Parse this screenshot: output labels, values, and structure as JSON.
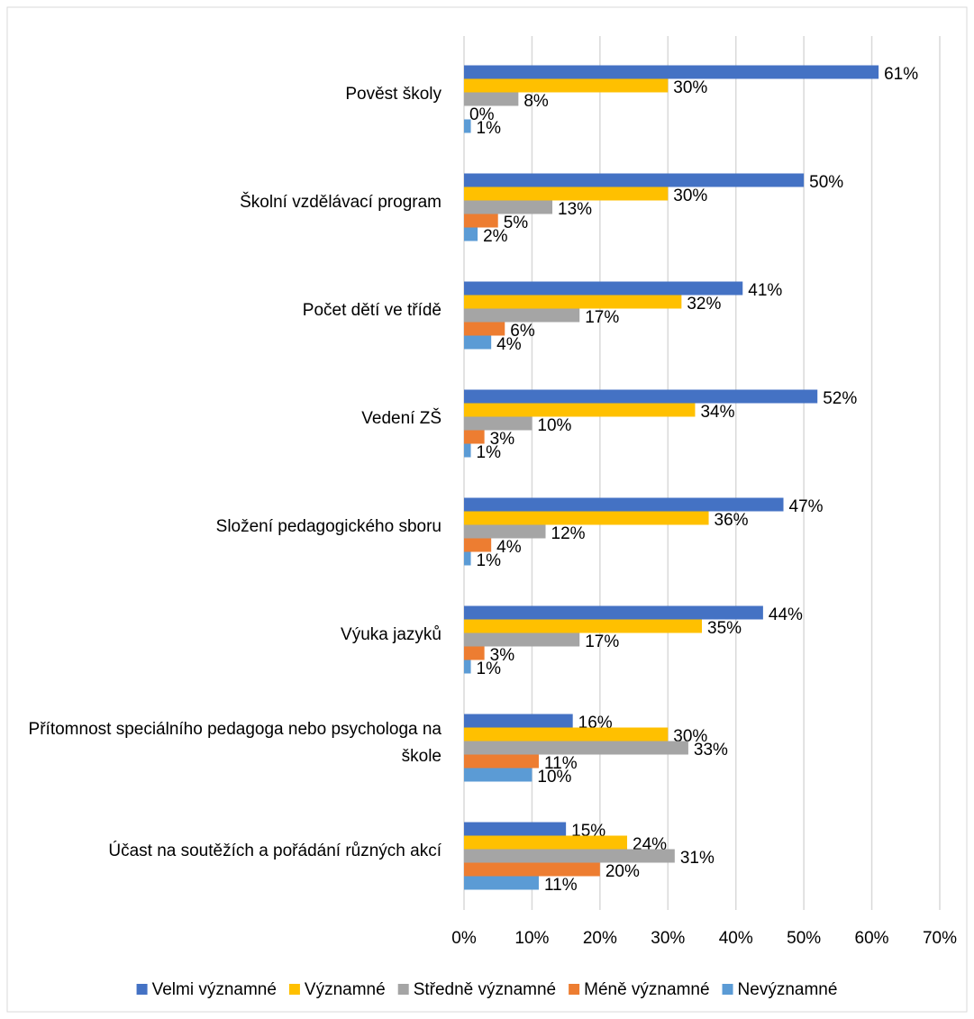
{
  "chart_data": {
    "type": "bar",
    "orientation": "horizontal",
    "categories": [
      "Pověst školy",
      "Školní vzdělávací program",
      "Počet dětí ve třídě",
      "Vedení ZŠ",
      "Složení pedagogického sboru",
      "Výuka jazyků",
      "Přítomnost speciálního pedagoga nebo psychologa na škole",
      "Účast na soutěžích a pořádání různých akcí"
    ],
    "series": [
      {
        "name": "Velmi významné",
        "color": "#4472c4",
        "values": [
          61,
          50,
          41,
          52,
          47,
          44,
          16,
          15
        ],
        "value_labels": [
          "61%",
          "50%",
          "41%",
          "52%",
          "47%",
          "44%",
          "16%",
          "15%"
        ]
      },
      {
        "name": "Významné",
        "color": "#ffc000",
        "values": [
          30,
          30,
          32,
          34,
          36,
          35,
          30,
          24
        ],
        "value_labels": [
          "30%",
          "30%",
          "32%",
          "34%",
          "36%",
          "35%",
          "30%",
          "24%"
        ]
      },
      {
        "name": "Středně významné",
        "color": "#a5a5a5",
        "values": [
          8,
          13,
          17,
          10,
          12,
          17,
          33,
          31
        ],
        "value_labels": [
          "8%",
          "13%",
          "17%",
          "10%",
          "12%",
          "17%",
          "33%",
          "31%"
        ]
      },
      {
        "name": "Méně významné",
        "color": "#ed7d31",
        "values": [
          0,
          5,
          6,
          3,
          4,
          3,
          11,
          20
        ],
        "value_labels": [
          "0%",
          "5%",
          "6%",
          "3%",
          "4%",
          "3%",
          "11%",
          "20%"
        ]
      },
      {
        "name": "Nevýznamné",
        "color": "#5b9bd5",
        "values": [
          1,
          2,
          4,
          1,
          1,
          1,
          10,
          11
        ],
        "value_labels": [
          "1%",
          "2%",
          "4%",
          "1%",
          "1%",
          "1%",
          "10%",
          "11%"
        ]
      }
    ],
    "xlim": [
      0,
      70
    ],
    "xticks": [
      {
        "value": 0,
        "label": "0%"
      },
      {
        "value": 10,
        "label": "10%"
      },
      {
        "value": 20,
        "label": "20%"
      },
      {
        "value": 30,
        "label": "30%"
      },
      {
        "value": 40,
        "label": "40%"
      },
      {
        "value": 50,
        "label": "50%"
      },
      {
        "value": 60,
        "label": "60%"
      },
      {
        "value": 70,
        "label": "70%"
      }
    ],
    "grid": true,
    "legend": "bottom"
  }
}
